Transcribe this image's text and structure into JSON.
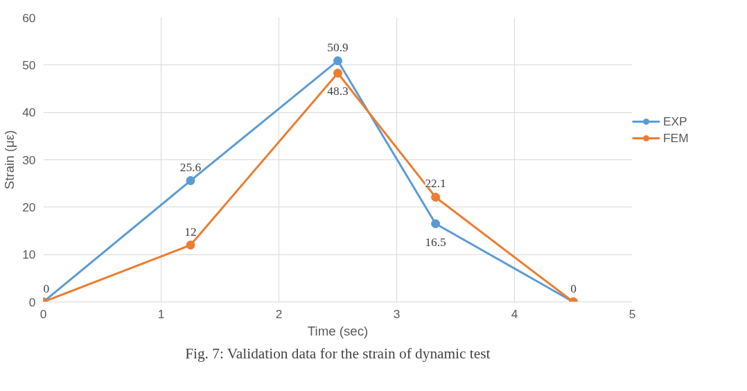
{
  "chart_data": {
    "type": "line",
    "title": "Fig. 7: Validation data for the strain of dynamic test",
    "xlabel": "Time (sec)",
    "ylabel": "Strain (με)",
    "x": [
      0,
      1.25,
      2.5,
      3.33,
      4.5
    ],
    "series": [
      {
        "name": "EXP",
        "color": "#5b9bd5",
        "values": [
          0,
          25.6,
          50.9,
          16.5,
          0
        ],
        "value_labels": [
          "0",
          "25.6",
          "50.9",
          "16.5",
          "0"
        ]
      },
      {
        "name": "FEM",
        "color": "#ed7d31",
        "values": [
          0,
          12,
          48.3,
          22.1,
          0
        ],
        "value_labels": [
          null,
          "12",
          "48.3",
          "22.1",
          null
        ]
      }
    ],
    "xlim": [
      0,
      5
    ],
    "xticks": [
      0,
      1,
      2,
      3,
      4,
      5
    ],
    "ylim": [
      0,
      60
    ],
    "yticks": [
      0,
      10,
      20,
      30,
      40,
      50,
      60
    ],
    "grid": true,
    "legend": "right",
    "marker": "circle",
    "line_style": "solid"
  }
}
